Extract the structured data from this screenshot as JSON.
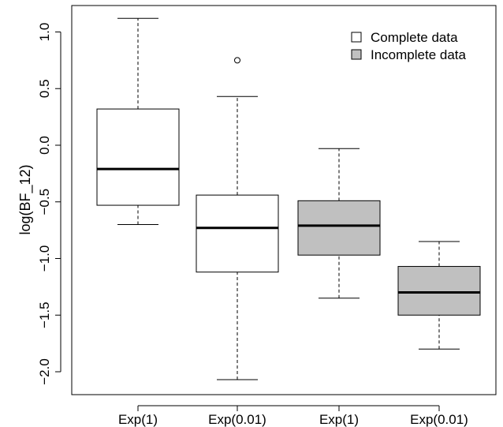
{
  "chart_data": {
    "type": "boxplot",
    "title": "",
    "xlabel": "",
    "ylabel": "log(BF_12)",
    "ylim": [
      -2.2,
      1.22
    ],
    "yticks": [
      1.0,
      0.5,
      0.0,
      -0.5,
      -1.0,
      -1.5,
      -2.0
    ],
    "ytick_labels": [
      "1.0",
      "0.5",
      "0.0",
      "−0.5",
      "−1.0",
      "−1.5",
      "−2.0"
    ],
    "grid": false,
    "legend_position": "top-right",
    "legend": [
      {
        "label": "Complete data",
        "fill": "#ffffff"
      },
      {
        "label": "Incomplete data",
        "fill": "#c0c0c0"
      }
    ],
    "boxes": [
      {
        "label": "Exp(1)",
        "group": "Complete data",
        "fill": "#ffffff",
        "whisker_low": -0.7,
        "q1": -0.53,
        "median": -0.21,
        "q3": 0.32,
        "whisker_high": 1.12,
        "outliers": []
      },
      {
        "label": "Exp(0.01)",
        "group": "Complete data",
        "fill": "#ffffff",
        "whisker_low": -2.07,
        "q1": -1.12,
        "median": -0.73,
        "q3": -0.44,
        "whisker_high": 0.43,
        "outliers": [
          0.75
        ]
      },
      {
        "label": "Exp(1)",
        "group": "Incomplete data",
        "fill": "#c0c0c0",
        "whisker_low": -1.35,
        "q1": -0.97,
        "median": -0.71,
        "q3": -0.49,
        "whisker_high": -0.03,
        "outliers": []
      },
      {
        "label": "Exp(0.01)",
        "group": "Incomplete data",
        "fill": "#c0c0c0",
        "whisker_low": -1.8,
        "q1": -1.5,
        "median": -1.3,
        "q3": -1.07,
        "whisker_high": -0.85,
        "outliers": []
      }
    ]
  }
}
